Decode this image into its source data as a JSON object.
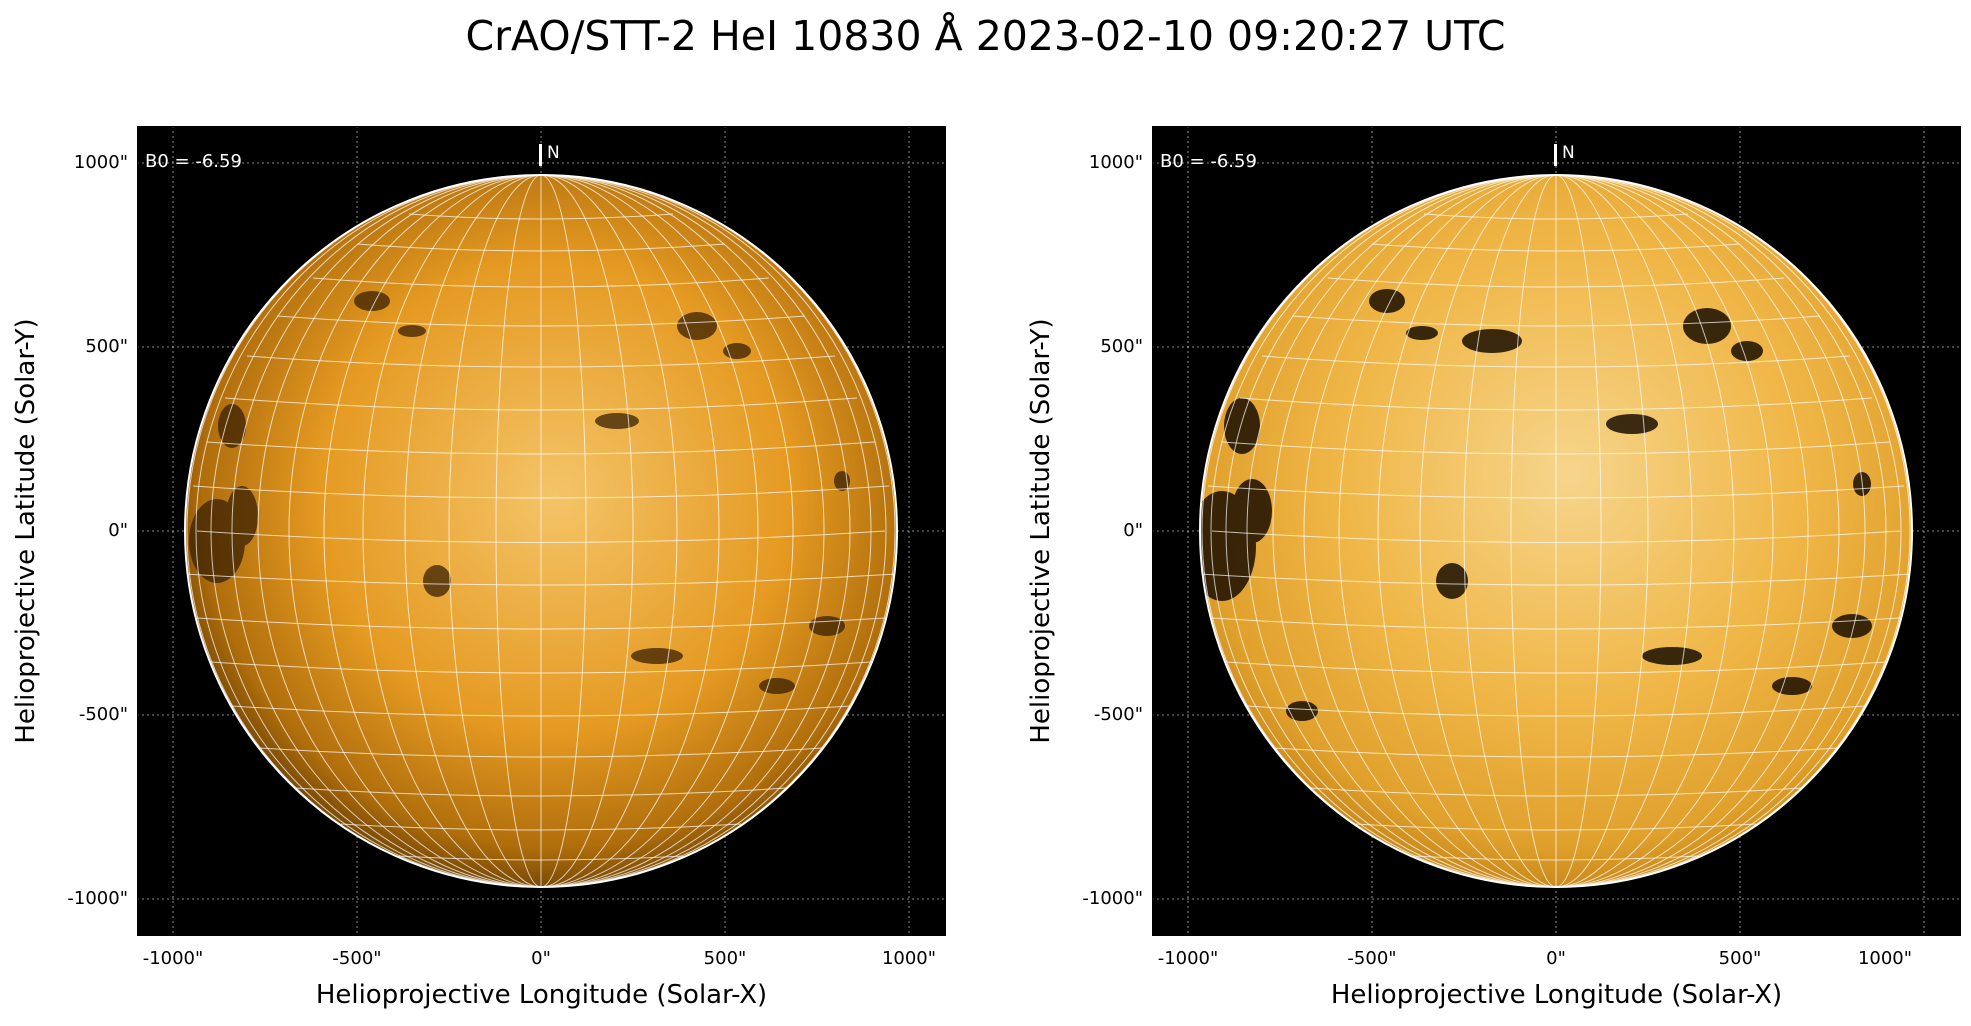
{
  "title": "CrAO/STT-2 HeI 10830 Å 2023-02-10 09:20:27 UTC",
  "panels": [
    {
      "b0_label": "B0 = -6.59",
      "north_label": "N",
      "x_label": "Helioprojective Longitude (Solar-X)",
      "y_label": "Helioprojective Latitude (Solar-Y)",
      "x_ticks": [
        "-1000\"",
        "-500\"",
        "0\"",
        "500\"",
        "1000\""
      ],
      "y_ticks": [
        "1000\"",
        "500\"",
        "0\"",
        "-500\"",
        "-1000\""
      ],
      "style": "normal"
    },
    {
      "b0_label": "B0 = -6.59",
      "north_label": "N",
      "x_label": "Helioprojective Longitude (Solar-X)",
      "y_label": "Helioprojective Latitude (Solar-Y)",
      "x_ticks": [
        "-1000\"",
        "-500\"",
        "0\"",
        "500\"",
        "1000\""
      ],
      "y_ticks": [
        "1000\"",
        "500\"",
        "0\"",
        "-500\"",
        "-1000\""
      ],
      "style": "enhanced"
    }
  ],
  "colors": {
    "disk_center": "#f2b74a",
    "disk_limb": "#8a5506",
    "disk_enhanced_center": "#f7d68a",
    "disk_enhanced_limb": "#c27e10",
    "background": "#000000",
    "grid": "#ffffff"
  }
}
